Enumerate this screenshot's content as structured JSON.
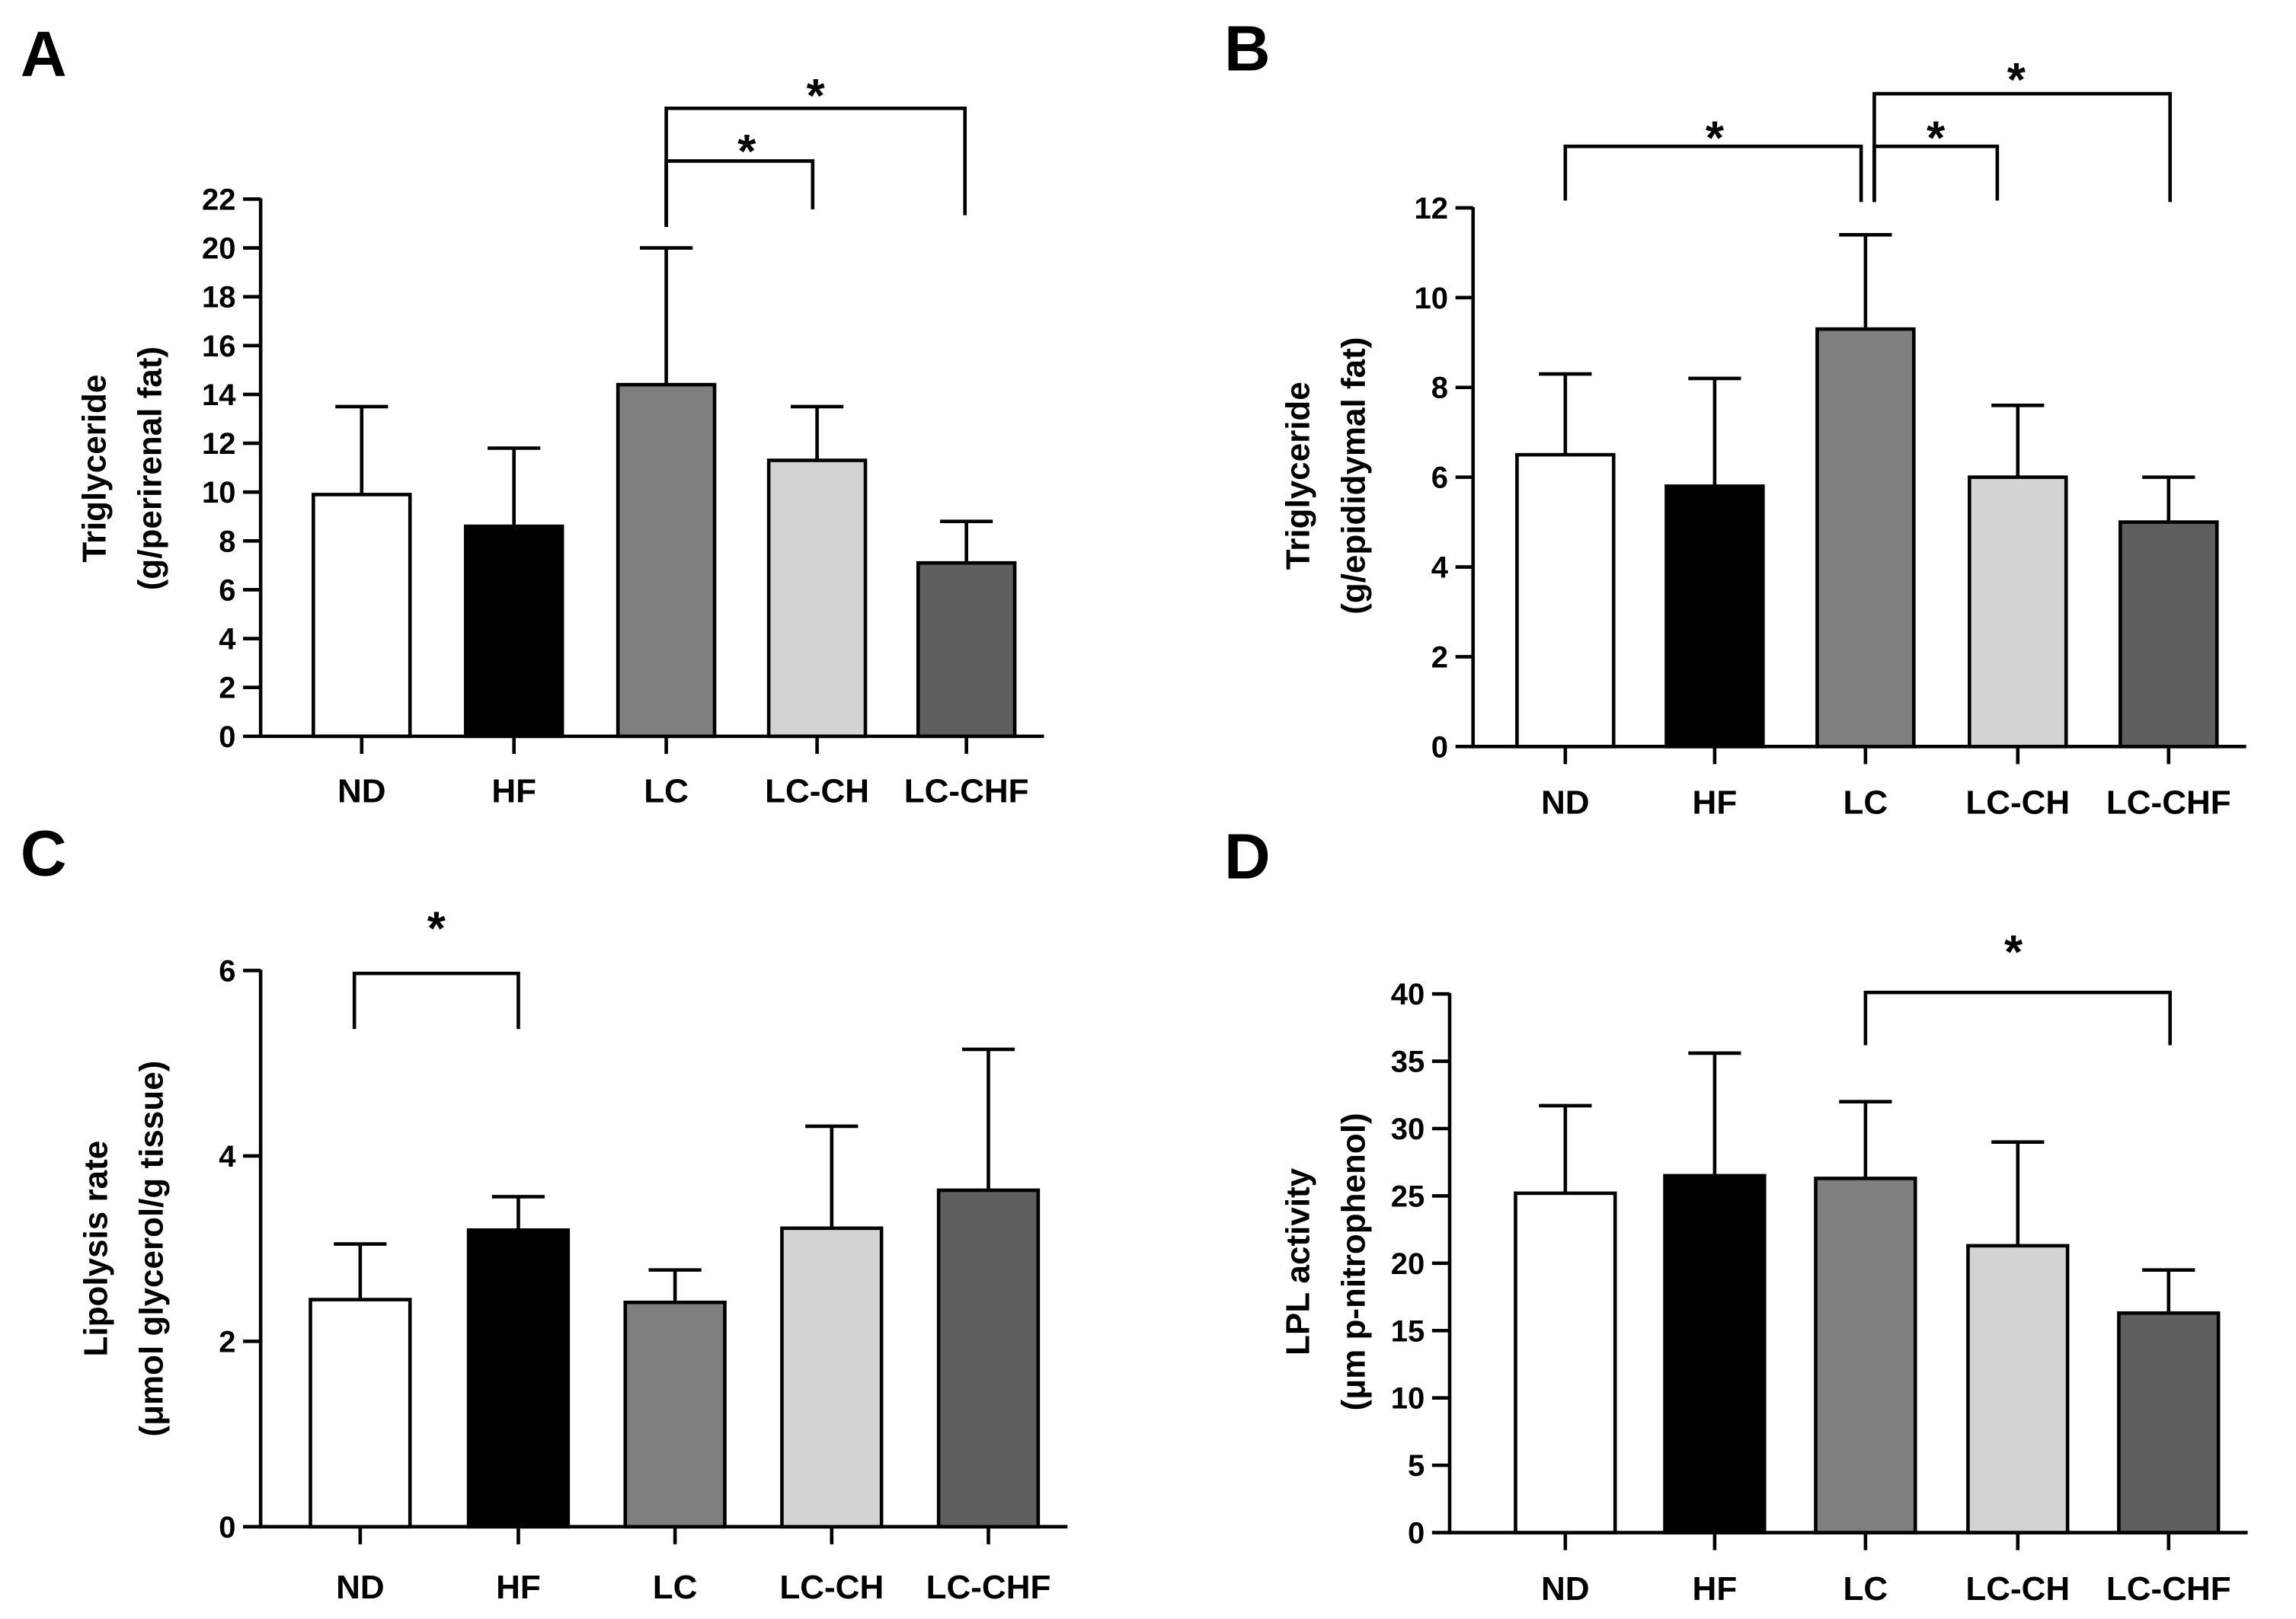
{
  "colors": {
    "ND": "#ffffff",
    "HF": "#000000",
    "LC": "#7f7f7f",
    "LC-CH": "#d3d3d3",
    "LC-CHF": "#5f5f5f",
    "axis": "#000000"
  },
  "chart_data": [
    {
      "letter": "A",
      "type": "bar",
      "categories": [
        "ND",
        "HF",
        "LC",
        "LC-CH",
        "LC-CHF"
      ],
      "values": [
        9.9,
        8.6,
        14.4,
        11.3,
        7.1
      ],
      "errors": [
        3.6,
        3.2,
        5.6,
        2.2,
        1.7
      ],
      "ylabel": [
        "Triglyceride",
        "(g/perirenal fat)"
      ],
      "ylim": [
        0,
        22
      ],
      "yticks": [
        0,
        2,
        4,
        6,
        8,
        10,
        12,
        14,
        16,
        18,
        20,
        22
      ],
      "ytick_labels": [
        "0",
        "2",
        "4",
        "6",
        "8",
        "10",
        "12",
        "14",
        "16",
        "18",
        "20",
        "22"
      ],
      "significance": [
        {
          "from": "LC",
          "to": "LC-CH",
          "label": "*"
        },
        {
          "from": "LC",
          "to": "LC-CHF",
          "label": "*"
        }
      ]
    },
    {
      "letter": "B",
      "type": "bar",
      "categories": [
        "ND",
        "HF",
        "LC",
        "LC-CH",
        "LC-CHF"
      ],
      "values": [
        6.5,
        5.8,
        9.3,
        6.0,
        5.0
      ],
      "errors": [
        1.8,
        2.4,
        2.1,
        1.6,
        1.0
      ],
      "ylabel": [
        "Triglyceride",
        "(g/epididymal fat)"
      ],
      "ylim": [
        0,
        12
      ],
      "yticks": [
        0,
        2,
        4,
        6,
        8,
        10,
        12
      ],
      "ytick_labels": [
        "0",
        "2",
        "4",
        "6",
        "8",
        "10",
        "12"
      ],
      "significance": [
        {
          "from": "ND",
          "to": "LC",
          "label": "*"
        },
        {
          "from": "LC",
          "to": "LC-CH",
          "label": "*"
        },
        {
          "from": "LC",
          "to": "LC-CHF",
          "label": "*"
        }
      ]
    },
    {
      "letter": "C",
      "type": "bar",
      "categories": [
        "ND",
        "HF",
        "LC",
        "LC-CH",
        "LC-CHF"
      ],
      "values": [
        2.45,
        3.2,
        2.42,
        3.22,
        3.63
      ],
      "errors": [
        0.6,
        0.36,
        0.35,
        1.1,
        1.52
      ],
      "ylabel": [
        "Lipolysis rate",
        "(μmol glycerol/g tissue)"
      ],
      "ylim": [
        0,
        6
      ],
      "yticks": [
        0,
        2,
        4,
        6
      ],
      "ytick_labels": [
        "0",
        "2",
        "4",
        "6"
      ],
      "significance": [
        {
          "from": "ND",
          "to": "HF",
          "label": "*"
        }
      ]
    },
    {
      "letter": "D",
      "type": "bar",
      "categories": [
        "ND",
        "HF",
        "LC",
        "LC-CH",
        "LC-CHF"
      ],
      "values": [
        25.2,
        26.5,
        26.3,
        21.3,
        16.3
      ],
      "errors": [
        6.5,
        9.1,
        5.7,
        7.7,
        3.2
      ],
      "ylabel": [
        "LPL activity",
        "(μm p-nitrophenol)"
      ],
      "ylim": [
        0,
        40
      ],
      "yticks": [
        0,
        5,
        10,
        15,
        20,
        25,
        30,
        35,
        40
      ],
      "ytick_labels": [
        "0",
        "5",
        "10",
        "15",
        "20",
        "25",
        "30",
        "35",
        "40"
      ],
      "significance": [
        {
          "from": "LC",
          "to": "LC-CHF",
          "label": "*"
        }
      ]
    }
  ]
}
